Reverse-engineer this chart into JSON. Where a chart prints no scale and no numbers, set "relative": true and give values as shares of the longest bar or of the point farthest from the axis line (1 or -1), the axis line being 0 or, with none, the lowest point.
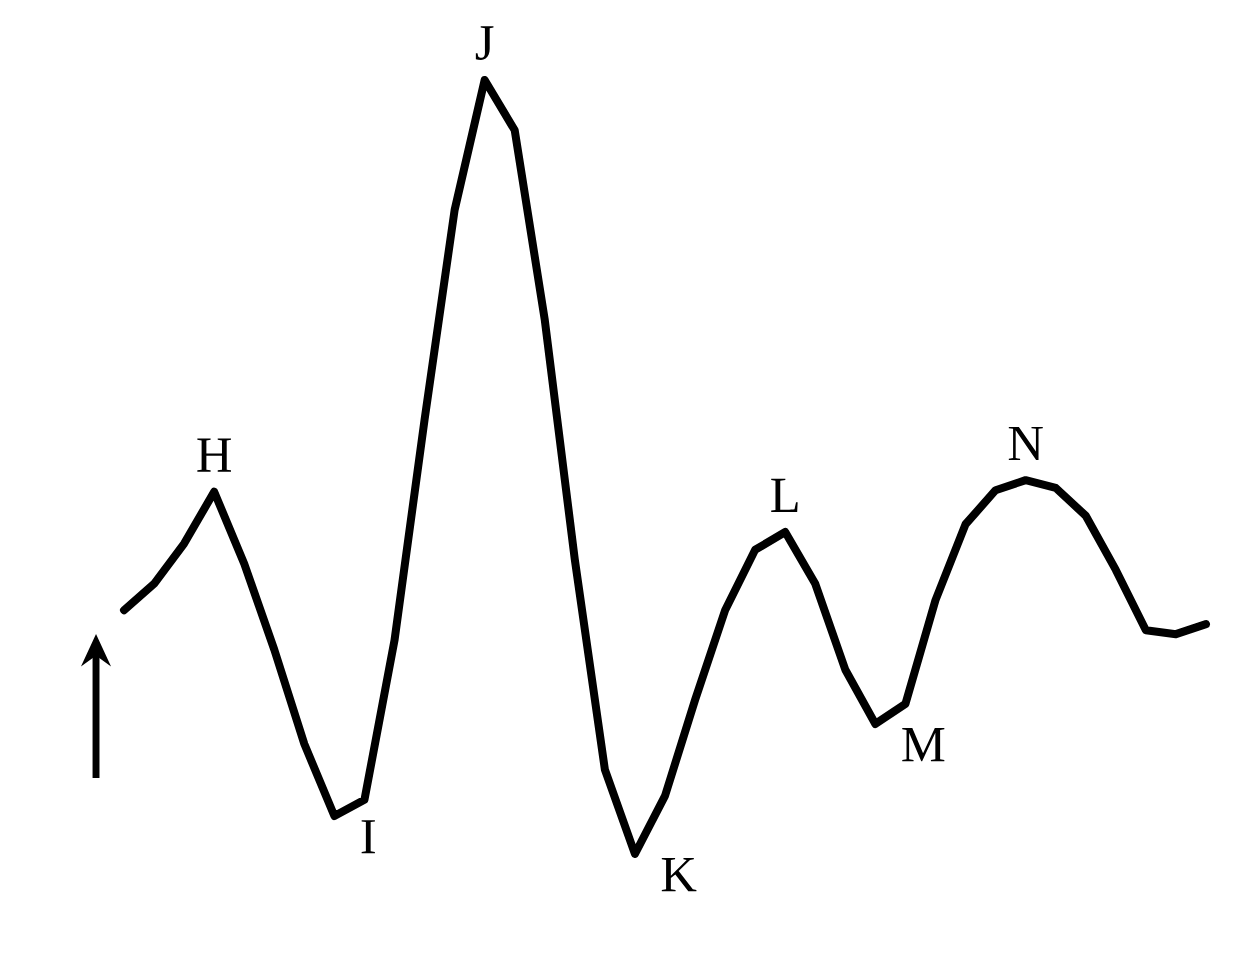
{
  "chart_data": {
    "type": "line",
    "relative": true,
    "color": "#000000",
    "categories": [
      null,
      null,
      null,
      null,
      null,
      null,
      null,
      null,
      null,
      null,
      null,
      null,
      null,
      null,
      null,
      null,
      null,
      null,
      null,
      null,
      null,
      null,
      null,
      null,
      null,
      null,
      null,
      null,
      null,
      null,
      null,
      null,
      null,
      null,
      null,
      null,
      null
    ],
    "values": [
      0.315,
      0.349,
      0.401,
      0.468,
      0.375,
      0.264,
      0.142,
      0.049,
      0.07,
      0.276,
      0.561,
      0.832,
      1.0,
      0.935,
      0.69,
      0.38,
      0.109,
      0.0,
      0.075,
      0.199,
      0.315,
      0.393,
      0.416,
      0.349,
      0.238,
      0.168,
      0.194,
      0.328,
      0.426,
      0.47,
      0.483,
      0.473,
      0.437,
      0.367,
      0.289,
      0.284,
      0.297
    ],
    "annotations": [
      "H",
      "I",
      "J",
      "K",
      "L",
      "M",
      "N"
    ]
  }
}
